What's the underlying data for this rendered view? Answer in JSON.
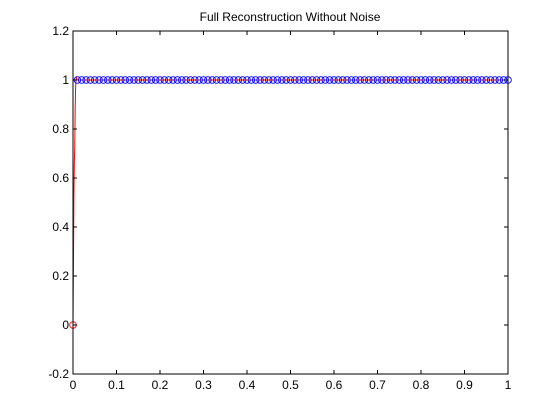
{
  "chart_data": {
    "type": "scatter",
    "title": "Full Reconstruction Without Noise",
    "xlabel": "",
    "ylabel": "",
    "xlim": [
      0,
      1
    ],
    "ylim": [
      -0.2,
      1.2
    ],
    "x_ticks": [
      0,
      0.1,
      0.2,
      0.3,
      0.4,
      0.5,
      0.6,
      0.7,
      0.8,
      0.9,
      1
    ],
    "x_tick_labels": [
      "0",
      "0.1",
      "0.2",
      "0.3",
      "0.4",
      "0.5",
      "0.6",
      "0.7",
      "0.8",
      "0.9",
      "1"
    ],
    "y_ticks": [
      -0.2,
      0,
      0.2,
      0.4,
      0.6,
      0.8,
      1,
      1.2
    ],
    "y_tick_labels": [
      "-0.2",
      "0",
      "0.2",
      "0.4",
      "0.6",
      "0.8",
      "1",
      "1.2"
    ],
    "grid": false,
    "legend": "none",
    "series": [
      {
        "role": "samples",
        "marker": "circle",
        "line": "none",
        "color": "#0000ff",
        "x_start": 0.0,
        "x_end": 1.0,
        "x_step": 0.01,
        "x_skip": [
          0
        ],
        "y_value": 1
      },
      {
        "role": "origin-sample",
        "marker": "circle",
        "line": "none",
        "color": "#ff0000",
        "x": [
          0
        ],
        "y": [
          0
        ]
      },
      {
        "role": "reconstruction",
        "marker": "none",
        "line": "solid",
        "color": "#ff0000",
        "x": [
          0,
          0.001,
          0.002,
          0.003,
          0.004,
          0.005,
          0.006,
          0.007,
          0.008,
          0.01,
          1
        ],
        "y": [
          0,
          0.24,
          0.52,
          0.66,
          0.72,
          0.88,
          0.97,
          1.0,
          1.01,
          1.0,
          1.0
        ]
      }
    ]
  }
}
